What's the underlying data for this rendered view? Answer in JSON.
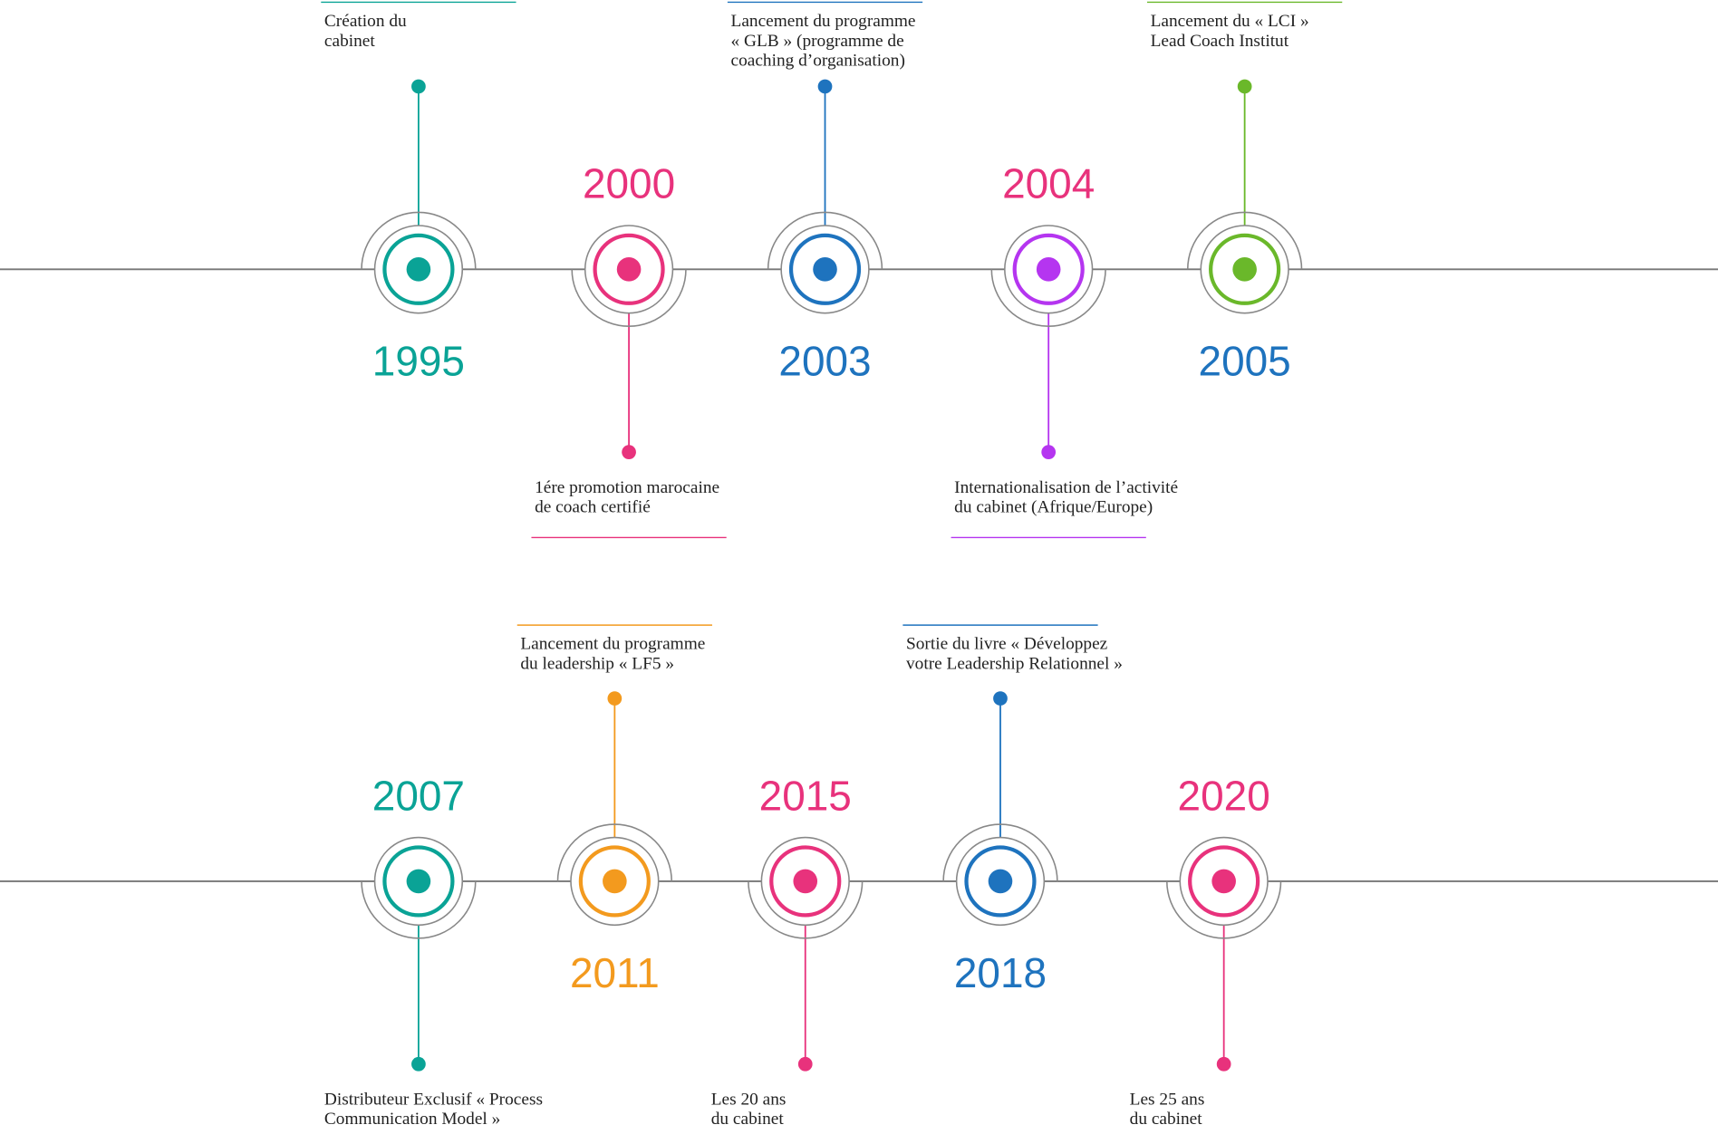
{
  "rows": [
    {
      "events": [
        {
          "year": "1995",
          "label": [
            "Création du",
            "cabinet"
          ],
          "color": "#0aa396",
          "year_color": "#0aa396",
          "label_side": "top"
        },
        {
          "year": "2000",
          "label": [
            "1ére promotion marocaine",
            "de coach certifié"
          ],
          "color": "#e8327c",
          "year_color": "#e8327c",
          "label_side": "bottom"
        },
        {
          "year": "2003",
          "label": [
            "Lancement du programme",
            "« GLB » (programme de",
            "coaching d’organisation)"
          ],
          "color": "#1e73be",
          "year_color": "#1e73be",
          "label_side": "top"
        },
        {
          "year": "2004",
          "label": [
            "Internationalisation de l’activité",
            "du cabinet (Afrique/Europe)"
          ],
          "color": "#b535f0",
          "year_color": "#e8327c",
          "label_side": "bottom"
        },
        {
          "year": "2005",
          "label": [
            "Lancement du « LCI »",
            "Lead Coach Institut"
          ],
          "color": "#6ab82a",
          "year_color": "#1e73be",
          "label_side": "top"
        }
      ]
    },
    {
      "events": [
        {
          "year": "2007",
          "label": [
            "Distributeur Exclusif « Process",
            "Communication Model »"
          ],
          "color": "#0aa396",
          "year_color": "#0aa396",
          "label_side": "bottom"
        },
        {
          "year": "2011",
          "label": [
            "Lancement du programme",
            "du leadership « LF5 »"
          ],
          "color": "#f39a1e",
          "year_color": "#f39a1e",
          "label_side": "top"
        },
        {
          "year": "2015",
          "label": [
            "Les 20 ans",
            "du cabinet"
          ],
          "color": "#e8327c",
          "year_color": "#e8327c",
          "label_side": "bottom"
        },
        {
          "year": "2018",
          "label": [
            "Sortie du livre « Développez",
            "votre Leadership Relationnel »"
          ],
          "color": "#1e73be",
          "year_color": "#1e73be",
          "label_side": "top"
        },
        {
          "year": "2020",
          "label": [
            "Les 25 ans",
            "du cabinet"
          ],
          "color": "#e8327c",
          "year_color": "#e8327c",
          "label_side": "bottom"
        }
      ]
    }
  ]
}
